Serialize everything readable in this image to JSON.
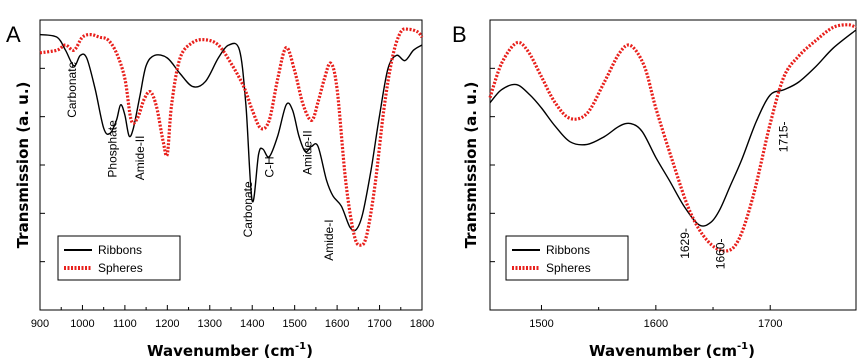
{
  "figure": {
    "y_axis_label": "Transmission (a. u.)",
    "x_axis_label_main": "Wavenumber (cm",
    "x_axis_label_sup": "-1",
    "x_axis_label_close": ")"
  },
  "colors": {
    "ribbons": "#000000",
    "spheres": "#e8201c",
    "accent_red_label": "#e8201c"
  },
  "legend": [
    {
      "label": "Ribbons",
      "style": "solid"
    },
    {
      "label": "Spheres",
      "style": "dotted"
    }
  ],
  "chart_data": [
    {
      "type": "line",
      "panel_label": "A",
      "xlabel": "Wavenumber (cm-1)",
      "ylabel": "Transmission (a. u.)",
      "xlim": [
        900,
        1800
      ],
      "ylim": [
        0,
        1
      ],
      "xticks": [
        900,
        1000,
        1100,
        1200,
        1300,
        1400,
        1500,
        1600,
        1700,
        1800
      ],
      "grid": false,
      "legend_position": "bottom-left",
      "series": [
        {
          "name": "Ribbons",
          "x": [
            900,
            940,
            960,
            980,
            995,
            1010,
            1030,
            1050,
            1065,
            1080,
            1090,
            1100,
            1110,
            1120,
            1135,
            1150,
            1170,
            1200,
            1230,
            1260,
            1290,
            1320,
            1345,
            1370,
            1385,
            1400,
            1415,
            1425,
            1440,
            1460,
            1480,
            1495,
            1510,
            1525,
            1540,
            1555,
            1575,
            1590,
            1610,
            1630,
            1645,
            1660,
            1680,
            1700,
            1720,
            1740,
            1760,
            1780,
            1800
          ],
          "y": [
            0.99,
            0.98,
            0.93,
            0.87,
            0.91,
            0.9,
            0.78,
            0.63,
            0.61,
            0.66,
            0.72,
            0.68,
            0.6,
            0.63,
            0.75,
            0.87,
            0.91,
            0.9,
            0.84,
            0.79,
            0.81,
            0.9,
            0.95,
            0.93,
            0.72,
            0.35,
            0.53,
            0.55,
            0.52,
            0.6,
            0.72,
            0.7,
            0.6,
            0.54,
            0.56,
            0.56,
            0.43,
            0.37,
            0.33,
            0.25,
            0.24,
            0.3,
            0.47,
            0.68,
            0.86,
            0.91,
            0.89,
            0.93,
            0.95
          ]
        },
        {
          "name": "Spheres",
          "x": [
            900,
            940,
            960,
            980,
            1000,
            1020,
            1040,
            1060,
            1080,
            1100,
            1115,
            1130,
            1145,
            1160,
            1175,
            1190,
            1200,
            1210,
            1230,
            1260,
            1290,
            1320,
            1350,
            1380,
            1400,
            1420,
            1440,
            1460,
            1480,
            1500,
            1520,
            1540,
            1555,
            1570,
            1585,
            1600,
            1620,
            1640,
            1655,
            1670,
            1690,
            1710,
            1730,
            1750,
            1770,
            1790,
            1800
          ],
          "y": [
            0.92,
            0.93,
            0.95,
            0.93,
            0.98,
            0.99,
            0.98,
            0.97,
            0.92,
            0.82,
            0.66,
            0.67,
            0.74,
            0.77,
            0.71,
            0.58,
            0.53,
            0.72,
            0.9,
            0.96,
            0.97,
            0.95,
            0.88,
            0.79,
            0.7,
            0.63,
            0.66,
            0.82,
            0.94,
            0.85,
            0.72,
            0.66,
            0.73,
            0.82,
            0.88,
            0.78,
            0.43,
            0.22,
            0.18,
            0.22,
            0.42,
            0.7,
            0.9,
            1.0,
            1.01,
            1.0,
            0.98
          ]
        }
      ],
      "annotations": [
        {
          "text": "Carbonate",
          "x": 985,
          "y": 0.67,
          "rotate": -90
        },
        {
          "text": "Phosphate",
          "x": 1080,
          "y": 0.44,
          "rotate": -90
        },
        {
          "text": "Amide-II",
          "x": 1145,
          "y": 0.43,
          "rotate": -90
        },
        {
          "text": "Carbonate",
          "x": 1400,
          "y": 0.21,
          "rotate": -90
        },
        {
          "text": "C-H",
          "x": 1450,
          "y": 0.44,
          "rotate": -90
        },
        {
          "text": "Amide-II",
          "x": 1540,
          "y": 0.45,
          "rotate": -90
        },
        {
          "text": "Amide-I",
          "x": 1590,
          "y": 0.12,
          "rotate": -90
        }
      ]
    },
    {
      "type": "line",
      "panel_label": "B",
      "xlabel": "Wavenumber (cm-1)",
      "ylabel": "Transmission (a. u.)",
      "xlim": [
        1455,
        1775
      ],
      "ylim": [
        0,
        1
      ],
      "xticks": [
        1500,
        1600,
        1700
      ],
      "grid": false,
      "legend_position": "bottom-left",
      "series": [
        {
          "name": "Ribbons",
          "x": [
            1455,
            1465,
            1478,
            1490,
            1500,
            1512,
            1525,
            1540,
            1555,
            1568,
            1578,
            1588,
            1600,
            1612,
            1625,
            1638,
            1648,
            1656,
            1665,
            1675,
            1688,
            1700,
            1712,
            1725,
            1740,
            1755,
            1775
          ],
          "y": [
            0.72,
            0.77,
            0.79,
            0.75,
            0.7,
            0.63,
            0.57,
            0.56,
            0.59,
            0.63,
            0.64,
            0.61,
            0.51,
            0.42,
            0.32,
            0.25,
            0.26,
            0.31,
            0.4,
            0.5,
            0.65,
            0.75,
            0.77,
            0.8,
            0.86,
            0.93,
            1.0
          ]
        },
        {
          "name": "Spheres",
          "x": [
            1455,
            1465,
            1478,
            1488,
            1500,
            1512,
            1525,
            1540,
            1555,
            1568,
            1578,
            1590,
            1600,
            1615,
            1630,
            1645,
            1660,
            1672,
            1685,
            1700,
            1712,
            1725,
            1740,
            1755,
            1768,
            1775
          ],
          "y": [
            0.74,
            0.87,
            0.95,
            0.92,
            0.82,
            0.72,
            0.66,
            0.68,
            0.8,
            0.91,
            0.94,
            0.86,
            0.7,
            0.49,
            0.3,
            0.19,
            0.15,
            0.19,
            0.36,
            0.64,
            0.82,
            0.9,
            0.96,
            1.01,
            1.02,
            1.01
          ]
        }
      ],
      "annotations": [
        {
          "text": "1629-",
          "x": 1629,
          "y": 0.12,
          "rotate": -90,
          "color": "#000000"
        },
        {
          "text": "1660-",
          "x": 1660,
          "y": 0.08,
          "rotate": -90,
          "color": "#e8201c"
        },
        {
          "text": "1715-",
          "x": 1715,
          "y": 0.53,
          "rotate": -90,
          "color": "#000000"
        }
      ]
    }
  ]
}
